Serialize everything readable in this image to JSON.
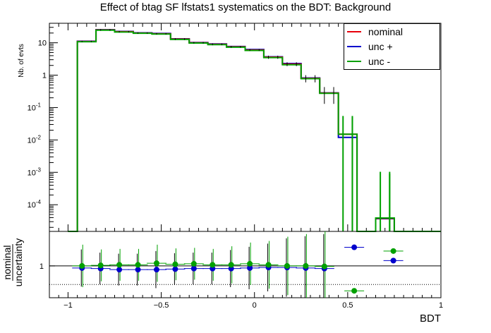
{
  "title": "Effect of btag SF lfstats1 systematics on the BDT: Background",
  "chart_data": {
    "type": "step-histogram",
    "title": "Effect of btag SF lfstats1 systematics on the BDT: Background",
    "xlabel": "BDT",
    "ylabel": "Nb. of evts",
    "yscale": "log",
    "xlim": [
      -1.1,
      1.0
    ],
    "ylim": [
      1.5e-05,
      40
    ],
    "x_ticks": [
      "−1",
      "−0.5",
      "0",
      "0.5",
      "1"
    ],
    "y_ticks": [
      "10",
      "1",
      "10^{-1}",
      "10^{-2}",
      "10^{-3}",
      "10^{-4}"
    ],
    "bin_edges": [
      -1.0,
      -0.95,
      -0.9,
      -0.85,
      -0.8,
      -0.75,
      -0.7,
      -0.65,
      -0.6,
      -0.55,
      -0.5,
      -0.45,
      -0.4,
      -0.35,
      -0.3,
      -0.25,
      -0.2,
      -0.15,
      -0.1,
      -0.05,
      0.0,
      0.05,
      0.1,
      0.15,
      0.2,
      0.25,
      0.3,
      0.35,
      0.4,
      0.45,
      0.5,
      0.55,
      0.6,
      0.65,
      0.7,
      0.75,
      0.8,
      0.85,
      0.9,
      0.95,
      1.0
    ],
    "series": [
      {
        "name": "nominal",
        "color": "#e8000b",
        "values": [
          1.5e-05,
          11,
          11,
          25,
          25,
          22,
          22,
          20,
          20,
          19,
          19,
          13,
          13,
          10,
          10,
          9,
          9,
          7.5,
          7.5,
          6,
          6,
          3.6,
          3.6,
          2.2,
          2.2,
          0.8,
          0.8,
          0.28,
          0.28,
          0.015,
          0.015,
          1.5e-05,
          1.5e-05,
          3.8e-05,
          3.8e-05,
          1.5e-05,
          1.5e-05,
          1.5e-05,
          1.5e-05,
          1.5e-05
        ],
        "errors": [
          0,
          0.5,
          0.5,
          1.5,
          1.5,
          1.2,
          1.2,
          1.0,
          1.0,
          1.0,
          1.0,
          0.8,
          0.8,
          0.6,
          0.6,
          0.6,
          0.6,
          0.5,
          0.5,
          0.4,
          0.4,
          0.4,
          0.4,
          0.3,
          0.3,
          0.2,
          0.2,
          0.15,
          0.15,
          0.04,
          0.04,
          0,
          0,
          0.001,
          0.001,
          0,
          0,
          0,
          0,
          0
        ]
      },
      {
        "name": "unc +",
        "color": "#0000cc",
        "values": [
          1.5e-05,
          11.2,
          11.2,
          25.5,
          25.5,
          22.5,
          22.5,
          20.3,
          20.3,
          19.4,
          19.4,
          13.3,
          13.3,
          10.2,
          10.2,
          9.2,
          9.2,
          7.7,
          7.7,
          6.2,
          6.2,
          3.7,
          3.7,
          2.3,
          2.3,
          0.82,
          0.82,
          0.285,
          0.285,
          0.012,
          0.012,
          1.5e-05,
          1.5e-05,
          3.7e-05,
          3.7e-05,
          1.5e-05,
          1.5e-05,
          1.5e-05,
          1.5e-05,
          1.5e-05
        ]
      },
      {
        "name": "unc -",
        "color": "#00a000",
        "values": [
          1.5e-05,
          10.8,
          10.8,
          24.5,
          24.5,
          21.5,
          21.5,
          19.7,
          19.7,
          18.6,
          18.6,
          12.7,
          12.7,
          9.8,
          9.8,
          8.8,
          8.8,
          7.3,
          7.3,
          5.8,
          5.8,
          3.5,
          3.5,
          2.1,
          2.1,
          0.78,
          0.78,
          0.275,
          0.275,
          0.015,
          0.015,
          1.5e-05,
          1.5e-05,
          3.9e-05,
          3.9e-05,
          1.5e-05,
          1.5e-05,
          1.5e-05,
          1.5e-05,
          1.5e-05
        ]
      }
    ],
    "legend": {
      "entries": [
        "nominal",
        "unc +",
        "unc -"
      ],
      "position": "top-right"
    },
    "ratio_panel": {
      "ylabel_numerator": "nominal",
      "ylabel_denominator": "uncertainty",
      "y_tick": "1",
      "reference_line": 1,
      "dotted_line": 0.65,
      "ylim": [
        0.4,
        1.65
      ],
      "points": [
        {
          "x": -0.925,
          "up": 0.96,
          "down": 1.0,
          "err_up": 0.35,
          "err_down": 0.4
        },
        {
          "x": -0.825,
          "up": 0.95,
          "down": 1.01,
          "err_up": 0.3,
          "err_down": 0.3
        },
        {
          "x": -0.725,
          "up": 0.93,
          "down": 1.02,
          "err_up": 0.3,
          "err_down": 0.3
        },
        {
          "x": -0.625,
          "up": 0.93,
          "down": 1.02,
          "err_up": 0.3,
          "err_down": 0.3
        },
        {
          "x": -0.525,
          "up": 0.93,
          "down": 1.05,
          "err_up": 0.35,
          "err_down": 0.35
        },
        {
          "x": -0.425,
          "up": 0.94,
          "down": 1.03,
          "err_up": 0.3,
          "err_down": 0.3
        },
        {
          "x": -0.325,
          "up": 0.95,
          "down": 1.04,
          "err_up": 0.3,
          "err_down": 0.3
        },
        {
          "x": -0.225,
          "up": 0.95,
          "down": 1.02,
          "err_up": 0.3,
          "err_down": 0.3
        },
        {
          "x": -0.125,
          "up": 0.95,
          "down": 1.02,
          "err_up": 0.35,
          "err_down": 0.35
        },
        {
          "x": -0.025,
          "up": 0.96,
          "down": 1.04,
          "err_up": 0.4,
          "err_down": 0.4
        },
        {
          "x": 0.075,
          "up": 0.97,
          "down": 1.02,
          "err_up": 0.45,
          "err_down": 0.45
        },
        {
          "x": 0.175,
          "up": 0.97,
          "down": 1.0,
          "err_up": 0.55,
          "err_down": 0.55
        },
        {
          "x": 0.275,
          "up": 0.96,
          "down": 1.0,
          "err_up": 0.6,
          "err_down": 0.6
        },
        {
          "x": 0.375,
          "up": 0.95,
          "down": 0.99,
          "err_up": 0.65,
          "err_down": 0.7
        },
        {
          "x": 0.535,
          "up": 1.35,
          "down": 0.53,
          "err_up": 0.0,
          "err_down": 0.0
        },
        {
          "x": 0.745,
          "up": 1.1,
          "down": 1.28,
          "err_up": 0.0,
          "err_down": 0.0
        }
      ]
    }
  }
}
